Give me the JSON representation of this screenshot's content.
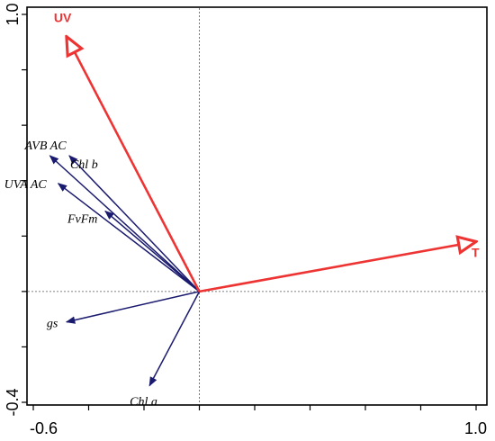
{
  "chart_data": {
    "type": "biplot",
    "xlim": [
      -0.6,
      1.0
    ],
    "ylim": [
      -0.4,
      1.0
    ],
    "x_tick_labels": [
      "-0.6",
      "1.0"
    ],
    "y_tick_labels": [
      "1.0",
      "-0.4"
    ],
    "x_ticks": [
      -0.6,
      -0.4,
      -0.2,
      0.0,
      0.2,
      0.4,
      0.6,
      0.8,
      1.0
    ],
    "y_ticks": [
      -0.4,
      -0.2,
      0.0,
      0.2,
      0.4,
      0.6,
      0.8,
      1.0
    ],
    "reference_lines": {
      "x": 0.0,
      "y": 0.0
    },
    "response_arrow_color": "#1a1a6e",
    "environment_arrow_color": "#ee3333",
    "response_variables": [
      {
        "label": "AVB AC",
        "x": -0.54,
        "y": 0.49
      },
      {
        "label": "Chl b",
        "x": -0.47,
        "y": 0.49
      },
      {
        "label": "UVA AC",
        "x": -0.51,
        "y": 0.39
      },
      {
        "label": "FvFm",
        "x": -0.34,
        "y": 0.29
      },
      {
        "label": "gs",
        "x": -0.48,
        "y": -0.11
      },
      {
        "label": "Chl a",
        "x": -0.18,
        "y": -0.34
      }
    ],
    "environmental_variables": [
      {
        "label": "UV",
        "x": -0.48,
        "y": 0.92
      },
      {
        "label": "T",
        "x": 1.0,
        "y": 0.18
      }
    ]
  }
}
